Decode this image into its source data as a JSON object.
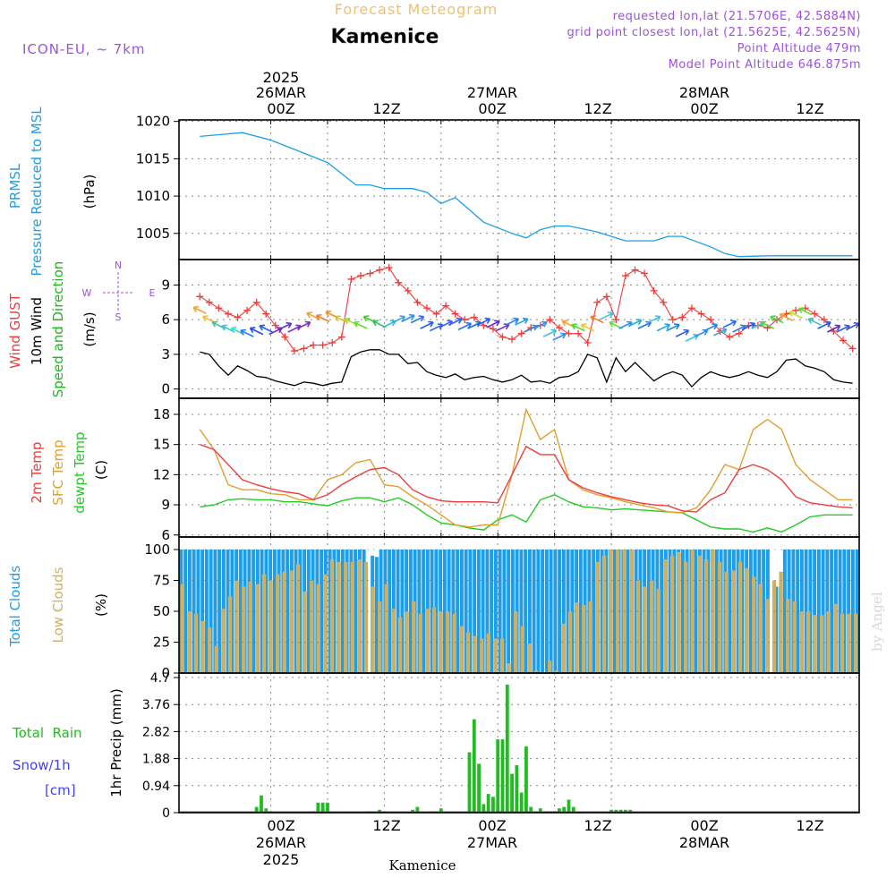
{
  "header": {
    "super_title": "Forecast Meteogram",
    "location": "Kamenice",
    "model": "ICON-EU, ~ 7km",
    "requested": "requested lon,lat (21.5706E, 42.5884N)",
    "grid_point": "grid point closest lon,lat (21.5625E, 42.5625N)",
    "point_altitude": "Point Altitude 479m",
    "model_altitude": "Model Point Altitude 646.875m",
    "footer_location": "Kamenice",
    "credit": "by Angel"
  },
  "time_axis": {
    "top_year": "2025",
    "top_hours": [
      "00Z",
      "12Z",
      "00Z",
      "12Z",
      "00Z",
      "12Z"
    ],
    "top_dates": [
      "26MAR",
      "27MAR",
      "28MAR"
    ],
    "bottom_hours": [
      "00Z",
      "12Z",
      "00Z",
      "12Z",
      "00Z",
      "12Z"
    ],
    "bottom_dates": [
      "26MAR",
      "27MAR",
      "28MAR"
    ],
    "bottom_year": "2025"
  },
  "colors": {
    "pressure": "#1e9ee8",
    "gust": "#f03c3c",
    "wind": "#000000",
    "dir": "#22b422",
    "temp": "#f03c3c",
    "sfc": "#e0a030",
    "dew": "#22cc22",
    "clouds": "#1e9ee8",
    "low": "#d0b060",
    "rain": "#22bb22",
    "snow": "#4040ff",
    "purple": "#a050e0",
    "title": "#f0c070"
  },
  "chart_data": [
    {
      "type": "line",
      "panel": "pressure",
      "ylabel_lines": [
        "PRMSL",
        "Pressure Reduced to MSL",
        "(hPa)"
      ],
      "ylim": [
        1001.5,
        1020.2
      ],
      "yticks": [
        "1020",
        "1015",
        "1010",
        "1005"
      ],
      "ytick_values": [
        1020,
        1015,
        1010,
        1005
      ],
      "x_hours": [
        -15,
        -6,
        0,
        6,
        12,
        18,
        21,
        24,
        30,
        33,
        36,
        39,
        45,
        51,
        54,
        57,
        60,
        63,
        66,
        69,
        72,
        75,
        81,
        84,
        87,
        93,
        96,
        99,
        105,
        108,
        111,
        114,
        117,
        120,
        123
      ],
      "values": [
        1018,
        1018.5,
        1017.5,
        1016,
        1014.5,
        1011.5,
        1011.5,
        1011,
        1011,
        1010.5,
        1009,
        1009.8,
        1006.5,
        1005,
        1004.4,
        1005.5,
        1006,
        1006,
        1005.6,
        1005.2,
        1004.6,
        1004,
        1004,
        1004.6,
        1004.6,
        1003.2,
        1002.3,
        1001.9,
        1002,
        1002,
        1002,
        1002,
        1002,
        1002,
        1002
      ],
      "series_name": "PRMSL"
    },
    {
      "type": "line",
      "panel": "wind",
      "ylabel_lines": [
        "Wind GUST",
        "10m Wind",
        "Speed and Direction",
        "(m/s)"
      ],
      "compass": {
        "n": "N",
        "s": "S",
        "e": "E",
        "w": "W"
      },
      "ylim": [
        -0.8,
        11.2
      ],
      "yticks": [
        "9",
        "6",
        "3",
        "0"
      ],
      "ytick_values": [
        9,
        6,
        3,
        0
      ],
      "x_hours": [
        -15,
        -13,
        -11,
        -9,
        -7,
        -5,
        -3,
        -1,
        1,
        3,
        5,
        7,
        9,
        11,
        13,
        15,
        17,
        19,
        21,
        23,
        25,
        27,
        29,
        31,
        33,
        35,
        37,
        39,
        41,
        43,
        45,
        47,
        49,
        51,
        53,
        55,
        57,
        59,
        61,
        63,
        65,
        67,
        69,
        71,
        73,
        75,
        77,
        79,
        81,
        83,
        85,
        87,
        89,
        91,
        93,
        95,
        97,
        99,
        101,
        103,
        105,
        107,
        109,
        111,
        113,
        115,
        117,
        119,
        121,
        123
      ],
      "gust": [
        8,
        7.5,
        7,
        6.5,
        6.2,
        6.8,
        7.5,
        6.5,
        5.5,
        4.5,
        3.3,
        3.5,
        3.8,
        3.8,
        4,
        4.5,
        9.5,
        9.8,
        10,
        10.3,
        10.5,
        9.2,
        8.5,
        7.5,
        7,
        6.5,
        7.2,
        6.5,
        6,
        6.2,
        5.5,
        5.2,
        4.5,
        4.3,
        4.8,
        5.3,
        5.5,
        6,
        5.3,
        4.8,
        4.8,
        4,
        7.5,
        8,
        6,
        9.8,
        10.3,
        10,
        8.5,
        7.5,
        6,
        6.2,
        7,
        6.5,
        6,
        5,
        4.5,
        4.8,
        5.5,
        5.5,
        5.3,
        6,
        6.5,
        6.8,
        7,
        6.5,
        6,
        5,
        4.2,
        3.5
      ],
      "wind": [
        3.2,
        3,
        2,
        1.2,
        2,
        1.6,
        1.1,
        1,
        0.7,
        0.5,
        0.3,
        0.6,
        0.5,
        0.3,
        0.5,
        0.6,
        2.8,
        3.2,
        3.4,
        3.4,
        3,
        3,
        2.2,
        2.3,
        1.5,
        1.2,
        1,
        1.3,
        0.8,
        1,
        1.1,
        0.8,
        0.6,
        0.8,
        1.2,
        0.6,
        0.7,
        0.5,
        1,
        1.1,
        1.5,
        3,
        2.7,
        0.6,
        2.7,
        1.5,
        2.3,
        1.5,
        0.7,
        1.2,
        1.5,
        1.2,
        0.2,
        1,
        1.5,
        1.2,
        1,
        1.2,
        1.5,
        1.2,
        1,
        1.5,
        2.5,
        2.6,
        2,
        1.8,
        1.5,
        0.8,
        0.6,
        0.5
      ],
      "dir_ms": [
        6.8,
        6,
        5.5,
        5.2,
        5,
        4.8,
        5,
        5.2,
        5,
        5.4,
        5.2,
        5.5,
        6.3,
        6.1,
        6.4,
        6,
        5.8,
        5.5,
        6,
        5.6,
        5.6,
        6,
        6.1,
        6,
        5.5,
        5.3,
        5.6,
        5.8,
        5.4,
        5.5,
        5.8,
        5.6,
        5.3,
        5.8,
        5.8,
        5.2,
        5.5,
        4.8,
        4.5,
        5.6,
        5.3,
        5.3,
        6,
        6.3,
        5.5,
        5.5,
        5.7,
        5.5,
        6,
        5.3,
        5.3,
        4.8,
        4.4,
        4.8,
        5.3,
        4.9,
        5.6,
        5.2,
        5.4,
        5.5,
        5.5,
        6,
        6.2,
        6.4,
        6.7,
        5.8,
        5.5,
        5.2,
        5.2,
        5.4
      ],
      "dir_colors": [
        "#f5a030",
        "#f5c030",
        "#40c0a0",
        "#40c0e0",
        "#40e0c0",
        "#2080f0",
        "#2050f0",
        "#2060f0",
        "#7030c0",
        "#6030d0",
        "#8030d0",
        "#8030c0",
        "#f5a030",
        "#f08030",
        "#f09030",
        "#e0c030",
        "#a0e030",
        "#60e030",
        "#40d030",
        "#30c060",
        "#30c0c0",
        "#40a0e0",
        "#3090f0",
        "#3070f0",
        "#2060f0",
        "#3060e0",
        "#4060f0",
        "#2060f0",
        "#3070f0",
        "#2070f0",
        "#2060f0",
        "#6030d0",
        "#7030c0",
        "#2080f0",
        "#20a0f0",
        "#3090e0",
        "#4090f0",
        "#40c0e0",
        "#3090f0",
        "#f5a030",
        "#40e030",
        "#f0c030",
        "#f08030",
        "#40c0e0",
        "#60e040",
        "#3090f0",
        "#20b0d0",
        "#2070f0",
        "#40c0f0",
        "#20a0f0",
        "#2080e0",
        "#3060e0",
        "#40c0e0",
        "#3090f0",
        "#2080f0",
        "#40a0e0",
        "#2070f0",
        "#3080f0",
        "#2060f0",
        "#40c0e0",
        "#60d040",
        "#40e040",
        "#f0a030",
        "#c0e030",
        "#60e030",
        "#40c0c0",
        "#2060f0",
        "#6030c0",
        "#3060e0",
        "#4050e0"
      ],
      "dir_dx": [
        -1,
        -1,
        -1,
        -1,
        -1,
        -1,
        -1,
        -1,
        1,
        1,
        1,
        1,
        -1,
        -1,
        -1,
        -1,
        -1,
        -1,
        -1,
        -1,
        1,
        1,
        1,
        1,
        1,
        1,
        1,
        1,
        1,
        1,
        1,
        1,
        1,
        1,
        1,
        1,
        1,
        1,
        1,
        -1,
        -1,
        -1,
        -1,
        1,
        -1,
        1,
        1,
        1,
        1,
        1,
        1,
        1,
        1,
        1,
        1,
        1,
        1,
        1,
        1,
        1,
        -1,
        -1,
        -1,
        -1,
        -1,
        -1,
        1,
        1,
        1,
        1
      ],
      "series_names": [
        "Wind GUST",
        "10m Wind",
        "Speed and Direction"
      ]
    },
    {
      "type": "line",
      "panel": "temp",
      "ylabel_lines": [
        "2m Temp",
        "SFC Temp",
        "dewpt Temp",
        "(C)"
      ],
      "ylim": [
        5.8,
        19.6
      ],
      "yticks": [
        "18",
        "15",
        "12",
        "9",
        "6"
      ],
      "ytick_values": [
        18,
        15,
        12,
        9,
        6
      ],
      "x_hours": [
        -15,
        -12,
        -9,
        -6,
        -3,
        0,
        3,
        6,
        9,
        12,
        15,
        18,
        21,
        24,
        27,
        30,
        33,
        36,
        39,
        42,
        45,
        48,
        51,
        54,
        57,
        60,
        63,
        66,
        69,
        72,
        75,
        78,
        81,
        84,
        87,
        90,
        93,
        96,
        99,
        102,
        105,
        108,
        111,
        114,
        117,
        120,
        123
      ],
      "t2m": [
        15,
        14.5,
        13,
        11.5,
        11,
        10.6,
        10.3,
        10.1,
        9.5,
        10,
        11,
        11.8,
        12.5,
        12.7,
        12,
        10.5,
        9.8,
        9.4,
        9.3,
        9.3,
        9.3,
        9.2,
        12,
        14.8,
        14,
        14,
        11.5,
        10.7,
        10.2,
        9.8,
        9.5,
        9.2,
        9,
        8.9,
        8.4,
        8.3,
        9.5,
        10.2,
        12.5,
        13,
        12.5,
        11.5,
        9.8,
        9.2,
        9,
        8.8,
        8.7
      ],
      "sfc": [
        16.5,
        14.5,
        11,
        10.5,
        10.5,
        10.1,
        10,
        9.5,
        9.5,
        11.5,
        12,
        13.2,
        13.5,
        11,
        10.8,
        9.8,
        9,
        8,
        7,
        6.8,
        7,
        7,
        12,
        18.5,
        15.5,
        16.5,
        11.5,
        10.5,
        10,
        9.7,
        9.3,
        9,
        8.7,
        8.3,
        8.2,
        8.7,
        10.5,
        13,
        12.5,
        16.5,
        17.5,
        16.5,
        13,
        11.5,
        10.5,
        9.5,
        9.5
      ],
      "dew": [
        8.8,
        9,
        9.5,
        9.6,
        9.5,
        9.5,
        9.3,
        9.3,
        9.1,
        8.9,
        9.4,
        9.7,
        9.7,
        9.3,
        9.7,
        9,
        8,
        7.2,
        7,
        6.7,
        6.5,
        7.5,
        8,
        7.3,
        9.5,
        10,
        9.3,
        8.8,
        8.7,
        8.5,
        8.6,
        8.5,
        8.4,
        8.3,
        8.2,
        7.5,
        6.8,
        6.6,
        6.6,
        6.3,
        6.7,
        6.3,
        7,
        7.8,
        8,
        8,
        8
      ],
      "series_names": [
        "2m Temp",
        "SFC Temp",
        "dewpt Temp"
      ]
    },
    {
      "type": "bar",
      "panel": "clouds",
      "ylabel_lines": [
        "Total Clouds",
        "Low Clouds",
        "(%)"
      ],
      "ylim": [
        0,
        100
      ],
      "yticks": [
        "100",
        "75",
        "50",
        "25",
        "0"
      ],
      "ytick_values": [
        100,
        75,
        50,
        25,
        0
      ],
      "x_start_hour": -15,
      "x_step_hours": 1,
      "total": [
        100,
        100,
        100,
        100,
        100,
        100,
        100,
        100,
        100,
        100,
        100,
        100,
        100,
        100,
        100,
        100,
        100,
        100,
        100,
        100,
        100,
        100,
        100,
        100,
        100,
        100,
        100,
        100,
        100,
        100,
        100,
        100,
        100,
        100,
        100,
        100,
        100,
        100,
        100,
        100,
        100,
        100,
        100,
        100,
        0,
        95,
        94,
        100,
        100,
        100,
        100,
        100,
        100,
        100,
        100,
        100,
        100,
        100,
        100,
        100,
        100,
        100,
        100,
        100,
        100,
        100,
        100,
        100,
        100,
        100,
        100,
        100,
        100,
        100,
        100,
        100,
        100,
        100,
        100,
        100,
        100,
        100,
        100,
        100,
        100,
        100,
        100,
        100,
        100,
        100,
        100,
        100,
        100,
        100,
        100,
        100,
        100,
        100,
        100,
        100,
        100,
        100,
        100,
        100,
        100,
        100,
        100,
        100,
        100,
        100,
        100,
        100,
        100,
        100,
        100,
        100,
        100,
        100,
        100,
        100,
        100,
        100,
        100,
        100,
        100,
        100,
        100,
        100,
        100,
        100,
        100,
        100,
        100,
        100,
        100,
        100,
        100,
        100,
        100,
        0,
        70,
        70,
        100,
        100,
        100,
        100,
        100,
        100,
        100,
        100,
        100,
        100,
        100,
        100,
        100,
        100,
        100,
        100,
        100,
        100
      ],
      "low": [
        72,
        50,
        48,
        42,
        37,
        22,
        52,
        62,
        75,
        70,
        74,
        72,
        80,
        75,
        80,
        82,
        83,
        88,
        66,
        75,
        72,
        80,
        92,
        90,
        90,
        90,
        92,
        90,
        70,
        58,
        72,
        52,
        45,
        50,
        58,
        48,
        52,
        53,
        50,
        50,
        48,
        38,
        33,
        30,
        28,
        32,
        28,
        28,
        8,
        50,
        38,
        24,
        2,
        0,
        10,
        2,
        40,
        50,
        57,
        55,
        58,
        90,
        95,
        100,
        100,
        100,
        100,
        75,
        70,
        75,
        68,
        92,
        95,
        98,
        90,
        100,
        95,
        92,
        100,
        90,
        82,
        83,
        90,
        85,
        78,
        72,
        60,
        75,
        82,
        60,
        58,
        50,
        50,
        47,
        47,
        50,
        56,
        48,
        48,
        48
      ],
      "series_names": [
        "Total Clouds",
        "Low Clouds"
      ]
    },
    {
      "type": "bar",
      "panel": "precip",
      "ylabel_lines": [
        "Total  Rain",
        "Snow/1h",
        "[cm]",
        "1hr Precip (mm)"
      ],
      "ylim": [
        0,
        4.7
      ],
      "yticks": [
        "4.7",
        "3.76",
        "2.82",
        "1.88",
        "0.94",
        "0"
      ],
      "ytick_values": [
        4.7,
        3.76,
        2.82,
        1.88,
        0.94,
        0
      ],
      "x_hours": [
        -3,
        -2,
        -1,
        9,
        10,
        11,
        12,
        21,
        23,
        30,
        31,
        35,
        36,
        42,
        43,
        44,
        45,
        46,
        47,
        48,
        49,
        50,
        51,
        52,
        53,
        54,
        55,
        56,
        57,
        58,
        59,
        60,
        61,
        62,
        63,
        64,
        72,
        73,
        74,
        75,
        76
      ],
      "values": [
        0.2,
        0.6,
        0.15,
        0.05,
        0.35,
        0.35,
        0.35,
        0.05,
        0.1,
        0.1,
        0.2,
        0.05,
        0.15,
        2.1,
        3.25,
        1.7,
        0.3,
        0.65,
        0.55,
        2.55,
        2.55,
        4.45,
        1.35,
        1.65,
        0.7,
        2.3,
        0.2,
        0.05,
        0.15,
        0.05,
        0.05,
        0.05,
        0.15,
        0.2,
        0.45,
        0.2,
        0.1,
        0.1,
        0.1,
        0.1,
        0.1
      ],
      "series_name": "1hr Precip"
    }
  ]
}
